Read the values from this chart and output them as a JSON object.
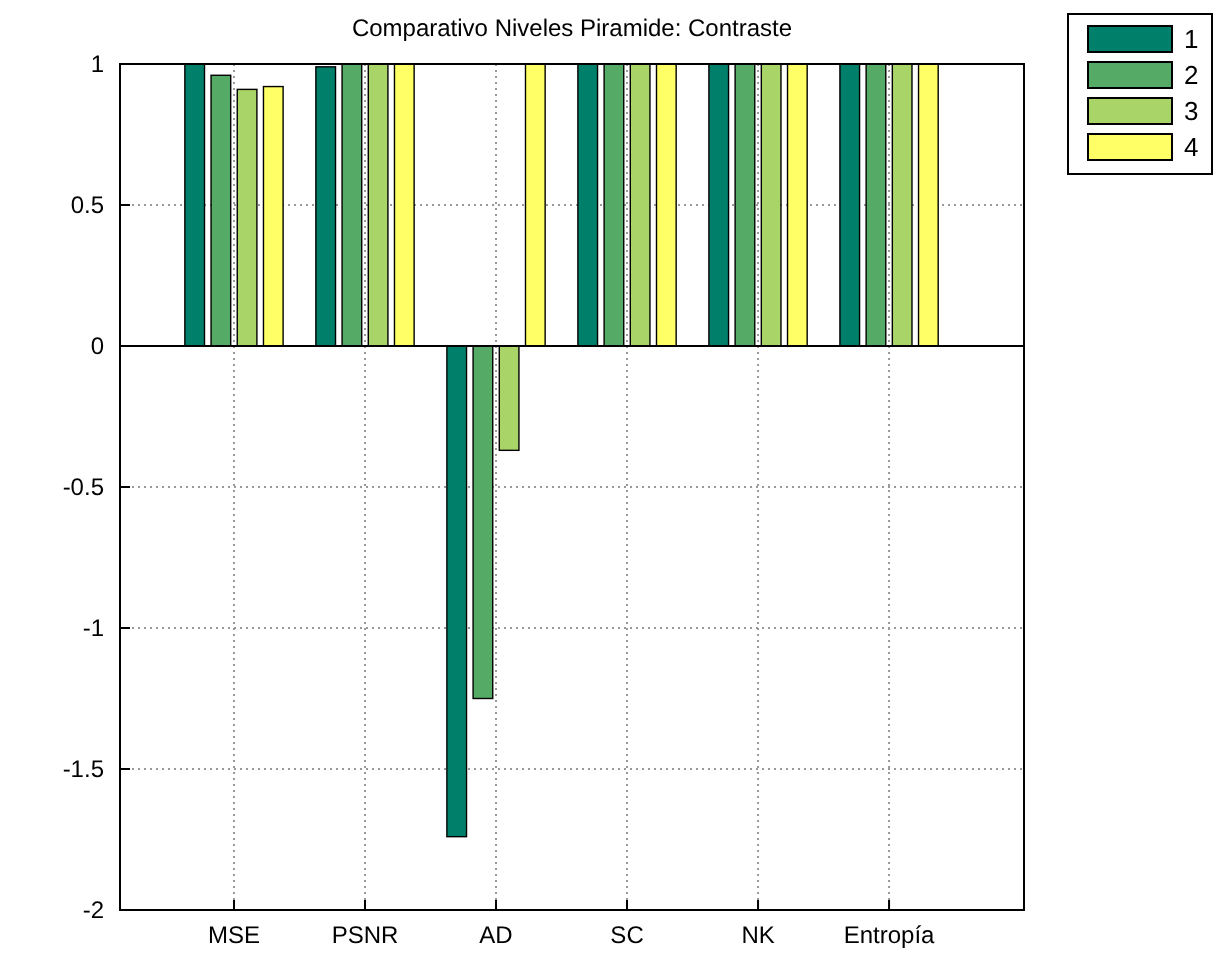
{
  "chart_data": {
    "type": "bar",
    "title": "Comparativo Niveles Piramide: Contraste",
    "categories": [
      "MSE",
      "PSNR",
      "AD",
      "SC",
      "NK",
      "Entropía"
    ],
    "series": [
      {
        "name": "1",
        "color": "#00806a",
        "values": [
          1,
          0.99,
          -1.74,
          1,
          1,
          1
        ]
      },
      {
        "name": "2",
        "color": "#55aa66",
        "values": [
          0.96,
          1,
          -1.25,
          1,
          1,
          1
        ]
      },
      {
        "name": "3",
        "color": "#a8d468",
        "values": [
          0.91,
          1,
          -0.37,
          1,
          1,
          1
        ]
      },
      {
        "name": "4",
        "color": "#ffff66",
        "values": [
          0.92,
          1,
          1,
          1,
          1,
          1
        ]
      }
    ],
    "ylim": [
      -2,
      1
    ],
    "yticks": [
      -2,
      -1.5,
      -1,
      -0.5,
      0,
      0.5,
      1
    ],
    "grid": true,
    "legend": "top right"
  }
}
